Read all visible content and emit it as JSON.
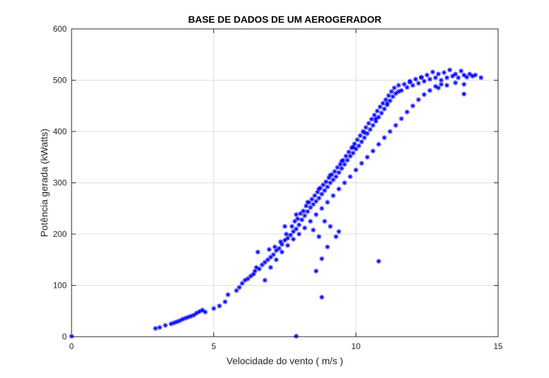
{
  "chart_data": {
    "type": "scatter",
    "title": "BASE DE DADOS DE UM AEROGERADOR",
    "xlabel": "Velocidade do vento ( m/s )",
    "ylabel": "Potência gerada (kWatts)",
    "xlim": [
      0,
      15
    ],
    "ylim": [
      0,
      600
    ],
    "xticks": [
      0,
      5,
      10,
      15
    ],
    "yticks": [
      0,
      100,
      200,
      300,
      400,
      500,
      600
    ],
    "xtick_labels": [
      "0",
      "5",
      "10",
      "15"
    ],
    "ytick_labels": [
      "0",
      "100",
      "200",
      "300",
      "400",
      "500",
      "600"
    ],
    "grid": true,
    "marker": "asterisk",
    "color": "#0000ff",
    "series": [
      {
        "points": [
          [
            0.0,
            1
          ],
          [
            7.9,
            1
          ],
          [
            2.95,
            16
          ],
          [
            3.1,
            18
          ],
          [
            3.3,
            22
          ],
          [
            3.5,
            25
          ],
          [
            3.6,
            27
          ],
          [
            3.7,
            29
          ],
          [
            3.8,
            31
          ],
          [
            3.9,
            34
          ],
          [
            4.0,
            36
          ],
          [
            4.1,
            38
          ],
          [
            4.2,
            40
          ],
          [
            4.3,
            42
          ],
          [
            4.4,
            46
          ],
          [
            4.5,
            49
          ],
          [
            4.6,
            52
          ],
          [
            4.7,
            48
          ],
          [
            5.0,
            55
          ],
          [
            5.2,
            60
          ],
          [
            5.4,
            68
          ],
          [
            5.5,
            82
          ],
          [
            5.8,
            90
          ],
          [
            5.9,
            96
          ],
          [
            6.0,
            104
          ],
          [
            6.1,
            110
          ],
          [
            6.2,
            113
          ],
          [
            6.3,
            118
          ],
          [
            6.4,
            122
          ],
          [
            6.45,
            128
          ],
          [
            6.5,
            135
          ],
          [
            6.55,
            165
          ],
          [
            6.6,
            132
          ],
          [
            6.7,
            140
          ],
          [
            6.8,
            145
          ],
          [
            6.9,
            150
          ],
          [
            6.95,
            170
          ],
          [
            7.0,
            155
          ],
          [
            7.1,
            160
          ],
          [
            7.15,
            175
          ],
          [
            7.2,
            168
          ],
          [
            7.3,
            172
          ],
          [
            7.35,
            185
          ],
          [
            7.4,
            180
          ],
          [
            7.5,
            188
          ],
          [
            7.55,
            200
          ],
          [
            7.6,
            192
          ],
          [
            7.7,
            198
          ],
          [
            7.75,
            215
          ],
          [
            7.8,
            205
          ],
          [
            7.85,
            225
          ],
          [
            7.9,
            210
          ],
          [
            7.95,
            230
          ],
          [
            8.0,
            218
          ],
          [
            8.05,
            240
          ],
          [
            8.1,
            228
          ],
          [
            8.15,
            245
          ],
          [
            8.2,
            236
          ],
          [
            8.25,
            255
          ],
          [
            8.3,
            244
          ],
          [
            8.35,
            262
          ],
          [
            8.4,
            252
          ],
          [
            8.45,
            268
          ],
          [
            8.5,
            258
          ],
          [
            8.55,
            275
          ],
          [
            8.6,
            264
          ],
          [
            8.65,
            282
          ],
          [
            8.7,
            270
          ],
          [
            8.75,
            290
          ],
          [
            8.8,
            278
          ],
          [
            8.85,
            296
          ],
          [
            8.9,
            285
          ],
          [
            8.95,
            302
          ],
          [
            9.0,
            292
          ],
          [
            9.05,
            310
          ],
          [
            9.1,
            300
          ],
          [
            9.15,
            316
          ],
          [
            9.2,
            306
          ],
          [
            9.25,
            322
          ],
          [
            9.3,
            312
          ],
          [
            9.35,
            330
          ],
          [
            9.4,
            320
          ],
          [
            9.45,
            336
          ],
          [
            9.5,
            328
          ],
          [
            9.55,
            344
          ],
          [
            9.6,
            336
          ],
          [
            9.65,
            352
          ],
          [
            9.7,
            344
          ],
          [
            9.75,
            360
          ],
          [
            9.8,
            352
          ],
          [
            9.85,
            368
          ],
          [
            9.9,
            358
          ],
          [
            9.95,
            376
          ],
          [
            10.0,
            366
          ],
          [
            10.05,
            384
          ],
          [
            10.1,
            372
          ],
          [
            10.15,
            392
          ],
          [
            10.2,
            380
          ],
          [
            10.25,
            400
          ],
          [
            10.3,
            388
          ],
          [
            10.35,
            408
          ],
          [
            10.4,
            396
          ],
          [
            10.45,
            416
          ],
          [
            10.5,
            404
          ],
          [
            10.55,
            424
          ],
          [
            10.6,
            412
          ],
          [
            10.65,
            432
          ],
          [
            10.7,
            420
          ],
          [
            10.75,
            440
          ],
          [
            10.8,
            428
          ],
          [
            10.85,
            448
          ],
          [
            10.9,
            436
          ],
          [
            10.95,
            455
          ],
          [
            11.0,
            444
          ],
          [
            11.05,
            462
          ],
          [
            11.1,
            452
          ],
          [
            11.15,
            470
          ],
          [
            11.2,
            460
          ],
          [
            11.25,
            478
          ],
          [
            11.3,
            468
          ],
          [
            11.35,
            485
          ],
          [
            11.4,
            474
          ],
          [
            11.5,
            490
          ],
          [
            11.6,
            480
          ],
          [
            11.7,
            492
          ],
          [
            11.8,
            486
          ],
          [
            11.9,
            498
          ],
          [
            12.0,
            490
          ],
          [
            12.1,
            502
          ],
          [
            12.2,
            494
          ],
          [
            12.3,
            506
          ],
          [
            12.4,
            498
          ],
          [
            12.5,
            510
          ],
          [
            12.6,
            502
          ],
          [
            12.7,
            516
          ],
          [
            12.8,
            505
          ],
          [
            12.9,
            512
          ],
          [
            13.0,
            500
          ],
          [
            13.1,
            515
          ],
          [
            13.2,
            505
          ],
          [
            13.3,
            520
          ],
          [
            13.4,
            508
          ],
          [
            13.5,
            512
          ],
          [
            13.6,
            505
          ],
          [
            13.7,
            518
          ],
          [
            13.8,
            510
          ],
          [
            13.9,
            506
          ],
          [
            14.0,
            512
          ],
          [
            14.1,
            508
          ],
          [
            14.2,
            510
          ],
          [
            14.4,
            505
          ],
          [
            6.8,
            110
          ],
          [
            7.0,
            135
          ],
          [
            7.2,
            150
          ],
          [
            7.4,
            165
          ],
          [
            7.6,
            178
          ],
          [
            7.8,
            190
          ],
          [
            8.0,
            200
          ],
          [
            8.2,
            212
          ],
          [
            8.4,
            225
          ],
          [
            8.6,
            238
          ],
          [
            8.8,
            250
          ],
          [
            9.0,
            262
          ],
          [
            9.2,
            275
          ],
          [
            9.4,
            288
          ],
          [
            9.6,
            300
          ],
          [
            9.8,
            312
          ],
          [
            10.0,
            325
          ],
          [
            10.2,
            338
          ],
          [
            10.4,
            350
          ],
          [
            10.6,
            362
          ],
          [
            10.8,
            375
          ],
          [
            11.0,
            388
          ],
          [
            11.2,
            400
          ],
          [
            11.4,
            412
          ],
          [
            11.6,
            425
          ],
          [
            11.8,
            438
          ],
          [
            12.0,
            450
          ],
          [
            12.2,
            462
          ],
          [
            12.4,
            472
          ],
          [
            12.6,
            480
          ],
          [
            12.8,
            488
          ],
          [
            13.0,
            492
          ],
          [
            13.2,
            490
          ],
          [
            13.5,
            495
          ],
          [
            13.8,
            492
          ],
          [
            7.5,
            215
          ],
          [
            7.9,
            238
          ],
          [
            8.3,
            262
          ],
          [
            8.7,
            288
          ],
          [
            9.1,
            315
          ],
          [
            9.5,
            342
          ],
          [
            9.9,
            370
          ],
          [
            10.3,
            398
          ],
          [
            10.7,
            425
          ],
          [
            11.1,
            455
          ],
          [
            11.5,
            478
          ],
          [
            11.9,
            496
          ],
          [
            12.3,
            505
          ],
          [
            8.5,
            208
          ],
          [
            8.7,
            195
          ],
          [
            8.9,
            225
          ],
          [
            9.0,
            175
          ],
          [
            9.1,
            215
          ],
          [
            9.3,
            195
          ],
          [
            9.4,
            205
          ],
          [
            8.8,
            152
          ],
          [
            8.6,
            128
          ],
          [
            8.8,
            77
          ],
          [
            10.8,
            147
          ],
          [
            13.8,
            473
          ],
          [
            12.9,
            485
          ]
        ]
      }
    ]
  }
}
